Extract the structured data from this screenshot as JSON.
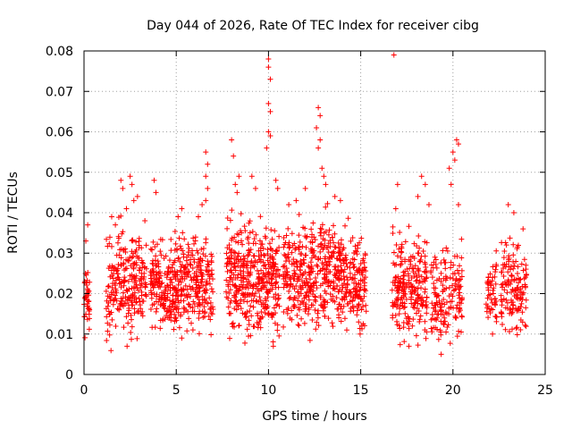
{
  "chart_data": {
    "type": "scatter",
    "title": "Day 044 of 2026, Rate Of TEC Index for receiver cibg",
    "xlabel": "GPS time / hours",
    "ylabel": "ROTI / TECUs",
    "xlim": [
      0,
      25
    ],
    "ylim": [
      0,
      0.08
    ],
    "x_ticks": [
      0,
      5,
      10,
      15,
      20,
      25
    ],
    "x_tick_labels": [
      "0",
      "5",
      "10",
      "15",
      "20",
      "25"
    ],
    "y_ticks": [
      0,
      0.01,
      0.02,
      0.03,
      0.04,
      0.05,
      0.06,
      0.07,
      0.08
    ],
    "y_tick_labels": [
      "0",
      "0.01",
      "0.02",
      "0.03",
      "0.04",
      "0.05",
      "0.06",
      "0.07",
      "0.08"
    ],
    "grid": true,
    "marker": "+",
    "color": "#ff0000",
    "series": [
      {
        "name": "ROTI",
        "clusters": [
          {
            "x_range": [
              0.0,
              0.3
            ],
            "y_range": [
              0.009,
              0.028
            ],
            "density": 40
          },
          {
            "x_range": [
              1.2,
              1.8
            ],
            "y_range": [
              0.005,
              0.036
            ],
            "density": 60
          },
          {
            "x_range": [
              1.8,
              2.6
            ],
            "y_range": [
              0.007,
              0.04
            ],
            "density": 90
          },
          {
            "x_range": [
              2.6,
              3.4
            ],
            "y_range": [
              0.007,
              0.04
            ],
            "density": 90
          },
          {
            "x_range": [
              3.6,
              4.5
            ],
            "y_range": [
              0.01,
              0.034
            ],
            "density": 110
          },
          {
            "x_range": [
              4.5,
              5.8
            ],
            "y_range": [
              0.009,
              0.037
            ],
            "density": 170
          },
          {
            "x_range": [
              5.8,
              6.6
            ],
            "y_range": [
              0.009,
              0.036
            ],
            "density": 100
          },
          {
            "x_range": [
              6.6,
              7.0
            ],
            "y_range": [
              0.008,
              0.034
            ],
            "density": 40
          },
          {
            "x_range": [
              7.7,
              8.6
            ],
            "y_range": [
              0.008,
              0.04
            ],
            "density": 120
          },
          {
            "x_range": [
              8.6,
              9.6
            ],
            "y_range": [
              0.007,
              0.04
            ],
            "density": 140
          },
          {
            "x_range": [
              9.6,
              10.6
            ],
            "y_range": [
              0.007,
              0.04
            ],
            "density": 140
          },
          {
            "x_range": [
              10.8,
              11.8
            ],
            "y_range": [
              0.008,
              0.04
            ],
            "density": 120
          },
          {
            "x_range": [
              11.8,
              12.8
            ],
            "y_range": [
              0.008,
              0.04
            ],
            "density": 120
          },
          {
            "x_range": [
              12.8,
              13.6
            ],
            "y_range": [
              0.009,
              0.042
            ],
            "density": 110
          },
          {
            "x_range": [
              13.6,
              14.6
            ],
            "y_range": [
              0.009,
              0.038
            ],
            "density": 120
          },
          {
            "x_range": [
              14.6,
              15.3
            ],
            "y_range": [
              0.01,
              0.036
            ],
            "density": 90
          },
          {
            "x_range": [
              16.7,
              17.6
            ],
            "y_range": [
              0.007,
              0.036
            ],
            "density": 110
          },
          {
            "x_range": [
              17.6,
              18.6
            ],
            "y_range": [
              0.007,
              0.036
            ],
            "density": 120
          },
          {
            "x_range": [
              18.8,
              19.6
            ],
            "y_range": [
              0.005,
              0.032
            ],
            "density": 80
          },
          {
            "x_range": [
              19.6,
              20.5
            ],
            "y_range": [
              0.006,
              0.034
            ],
            "density": 80
          },
          {
            "x_range": [
              21.8,
              22.4
            ],
            "y_range": [
              0.01,
              0.03
            ],
            "density": 50
          },
          {
            "x_range": [
              22.6,
              23.4
            ],
            "y_range": [
              0.008,
              0.036
            ],
            "density": 80
          },
          {
            "x_range": [
              23.4,
              24.0
            ],
            "y_range": [
              0.007,
              0.034
            ],
            "density": 60
          }
        ],
        "outliers": [
          [
            0.2,
            0.037
          ],
          [
            0.1,
            0.033
          ],
          [
            1.5,
            0.039
          ],
          [
            1.7,
            0.037
          ],
          [
            2.0,
            0.048
          ],
          [
            2.1,
            0.046
          ],
          [
            2.3,
            0.041
          ],
          [
            2.5,
            0.049
          ],
          [
            2.6,
            0.047
          ],
          [
            2.7,
            0.043
          ],
          [
            2.9,
            0.044
          ],
          [
            3.3,
            0.038
          ],
          [
            3.8,
            0.048
          ],
          [
            3.9,
            0.045
          ],
          [
            5.3,
            0.041
          ],
          [
            5.1,
            0.039
          ],
          [
            6.2,
            0.039
          ],
          [
            6.4,
            0.042
          ],
          [
            6.6,
            0.055
          ],
          [
            6.7,
            0.052
          ],
          [
            6.6,
            0.049
          ],
          [
            6.7,
            0.046
          ],
          [
            6.6,
            0.043
          ],
          [
            8.0,
            0.058
          ],
          [
            8.1,
            0.054
          ],
          [
            8.2,
            0.047
          ],
          [
            8.4,
            0.049
          ],
          [
            8.3,
            0.045
          ],
          [
            9.1,
            0.049
          ],
          [
            9.3,
            0.046
          ],
          [
            10.0,
            0.078
          ],
          [
            10.0,
            0.076
          ],
          [
            10.1,
            0.073
          ],
          [
            10.0,
            0.067
          ],
          [
            10.1,
            0.065
          ],
          [
            10.0,
            0.06
          ],
          [
            10.1,
            0.059
          ],
          [
            9.9,
            0.056
          ],
          [
            10.4,
            0.048
          ],
          [
            10.5,
            0.046
          ],
          [
            11.1,
            0.042
          ],
          [
            11.5,
            0.043
          ],
          [
            12.0,
            0.046
          ],
          [
            12.7,
            0.066
          ],
          [
            12.8,
            0.064
          ],
          [
            12.6,
            0.061
          ],
          [
            12.8,
            0.058
          ],
          [
            12.7,
            0.056
          ],
          [
            12.9,
            0.051
          ],
          [
            13.0,
            0.049
          ],
          [
            13.1,
            0.047
          ],
          [
            13.6,
            0.044
          ],
          [
            13.9,
            0.043
          ],
          [
            16.8,
            0.079
          ],
          [
            16.9,
            0.041
          ],
          [
            17.0,
            0.047
          ],
          [
            18.1,
            0.044
          ],
          [
            18.3,
            0.049
          ],
          [
            18.5,
            0.047
          ],
          [
            18.7,
            0.042
          ],
          [
            19.8,
            0.051
          ],
          [
            19.9,
            0.047
          ],
          [
            20.0,
            0.055
          ],
          [
            20.2,
            0.058
          ],
          [
            20.3,
            0.057
          ],
          [
            20.1,
            0.053
          ],
          [
            20.3,
            0.042
          ],
          [
            23.0,
            0.042
          ],
          [
            23.3,
            0.04
          ],
          [
            23.8,
            0.036
          ]
        ]
      }
    ]
  }
}
